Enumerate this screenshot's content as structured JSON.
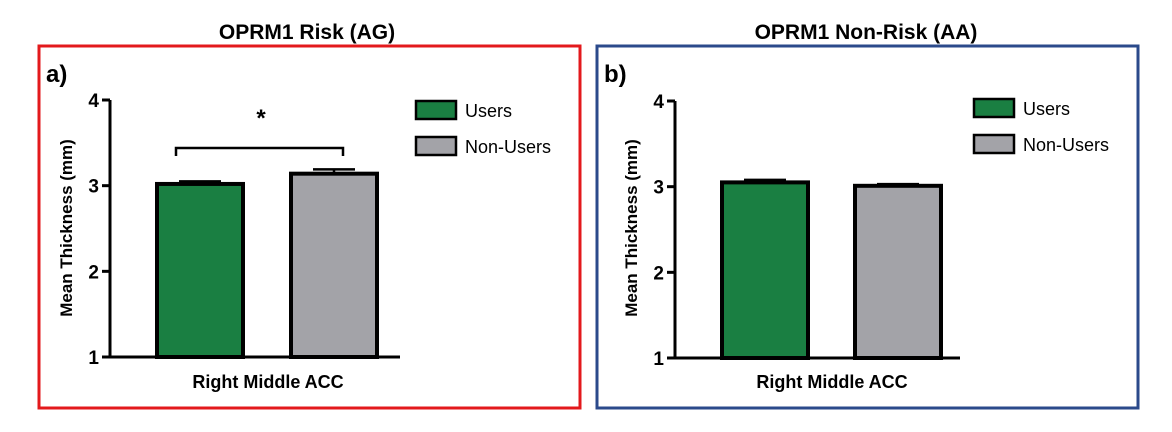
{
  "colors": {
    "users": "#1a7f42",
    "non_users": "#a3a3a8",
    "panel_a_border": "#e3191c",
    "panel_b_border": "#2b4a8b"
  },
  "chart_data": [
    {
      "type": "bar",
      "panel_label": "a)",
      "title": "OPRM1 Risk (AG)",
      "xlabel": "Right Middle ACC",
      "ylabel": "Mean Thickness (mm)",
      "ylim": [
        1,
        4
      ],
      "yticks": [
        "1",
        "2",
        "3",
        "4"
      ],
      "categories": [
        "Right Middle ACC"
      ],
      "series": [
        {
          "name": "Users",
          "values": [
            3.02
          ],
          "error": [
            0.03
          ]
        },
        {
          "name": "Non-Users",
          "values": [
            3.14
          ],
          "error": [
            0.05
          ]
        }
      ],
      "annotation": "*",
      "legend": "top-right",
      "grid": false
    },
    {
      "type": "bar",
      "panel_label": "b)",
      "title": "OPRM1 Non-Risk (AA)",
      "xlabel": "Right Middle ACC",
      "ylabel": "Mean Thickness (mm)",
      "ylim": [
        1,
        4
      ],
      "yticks": [
        "1",
        "2",
        "3",
        "4"
      ],
      "categories": [
        "Right Middle ACC"
      ],
      "series": [
        {
          "name": "Users",
          "values": [
            3.05
          ],
          "error": [
            0.03
          ]
        },
        {
          "name": "Non-Users",
          "values": [
            3.01
          ],
          "error": [
            0.02
          ]
        }
      ],
      "legend": "top-right",
      "grid": false
    }
  ]
}
